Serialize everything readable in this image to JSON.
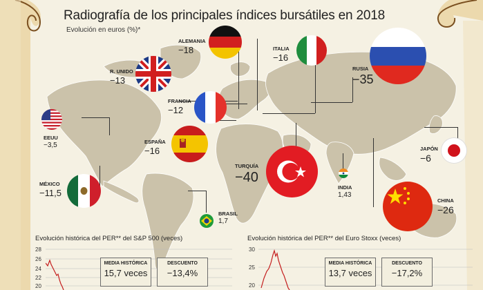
{
  "title": "Radiografía de los principales índices bursátiles en 2018",
  "subtitle": "Evolución en euros (%)*",
  "countries": {
    "alemania": {
      "name": "ALEMANIA",
      "value": "−18"
    },
    "italia": {
      "name": "ITALIA",
      "value": "−16"
    },
    "rusia": {
      "name": "RUSIA",
      "value": "−35"
    },
    "reino_unido": {
      "name": "R. UNIDO",
      "value": "−13"
    },
    "francia": {
      "name": "FRANCIA",
      "value": "−12"
    },
    "eeuu": {
      "name": "EEUU",
      "value": "−3,5"
    },
    "espana": {
      "name": "ESPAÑA",
      "value": "−16"
    },
    "turquia": {
      "name": "TURQUÍA",
      "value": "−40"
    },
    "japon": {
      "name": "JAPÓN",
      "value": "−6"
    },
    "india": {
      "name": "INDIA",
      "value": "1,43"
    },
    "mexico": {
      "name": "MÉXICO",
      "value": "−11,5"
    },
    "brasil": {
      "name": "BRASIL",
      "value": "1,7"
    },
    "china": {
      "name": "CHINA",
      "value": "−26"
    }
  },
  "charts": {
    "sp500": {
      "title": "Evolución histórica del PER** del S&P 500 (veces)",
      "ticks": [
        "28",
        "26",
        "24",
        "22",
        "20"
      ],
      "media_label": "MEDIA HISTÓRICA",
      "media_value": "15,7 veces",
      "descuento_label": "DESCUENTO",
      "descuento_value": "−13,4%"
    },
    "eurostoxx": {
      "title": "Evolución histórica del PER** del Euro Stoxx (veces)",
      "ticks": [
        "30",
        "25",
        "20"
      ],
      "media_label": "MEDIA HISTÓRICA",
      "media_value": "13,7 veces",
      "descuento_label": "DESCUENTO",
      "descuento_value": "−17,2%"
    }
  },
  "colors": {
    "parchment": "#f4f0e2",
    "scroll_edge": "#b88a45",
    "map_land": "#c9c0a8",
    "red_line": "#c41e1e"
  }
}
